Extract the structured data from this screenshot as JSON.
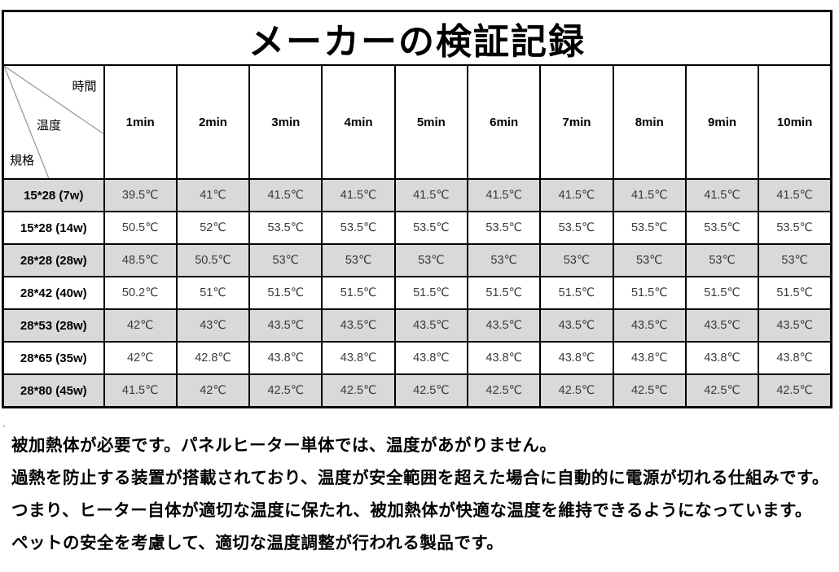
{
  "title": "メーカーの検証記録",
  "table": {
    "corner": {
      "time": "時間",
      "temperature": "温度",
      "spec": "規格"
    },
    "time_headers": [
      "1min",
      "2min",
      "3min",
      "4min",
      "5min",
      "6min",
      "7min",
      "8min",
      "9min",
      "10min"
    ],
    "rows": [
      {
        "label": "15*28（7w）",
        "label_display": "15*28 (7w)",
        "values": [
          "39.5℃",
          "41℃",
          "41.5℃",
          "41.5℃",
          "41.5℃",
          "41.5℃",
          "41.5℃",
          "41.5℃",
          "41.5℃",
          "41.5℃"
        ]
      },
      {
        "label": "15*28（14w）",
        "label_display": "15*28 (14w)",
        "values": [
          "50.5℃",
          "52℃",
          "53.5℃",
          "53.5℃",
          "53.5℃",
          "53.5℃",
          "53.5℃",
          "53.5℃",
          "53.5℃",
          "53.5℃"
        ]
      },
      {
        "label": "28*28（28w）",
        "label_display": "28*28 (28w)",
        "values": [
          "48.5℃",
          "50.5℃",
          "53℃",
          "53℃",
          "53℃",
          "53℃",
          "53℃",
          "53℃",
          "53℃",
          "53℃"
        ]
      },
      {
        "label": "28*42（40w）",
        "label_display": "28*42 (40w)",
        "values": [
          "50.2℃",
          "51℃",
          "51.5℃",
          "51.5℃",
          "51.5℃",
          "51.5℃",
          "51.5℃",
          "51.5℃",
          "51.5℃",
          "51.5℃"
        ]
      },
      {
        "label": "28*53（28w）",
        "label_display": "28*53 (28w)",
        "values": [
          "42℃",
          "43℃",
          "43.5℃",
          "43.5℃",
          "43.5℃",
          "43.5℃",
          "43.5℃",
          "43.5℃",
          "43.5℃",
          "43.5℃"
        ]
      },
      {
        "label": "28*65（35w）",
        "label_display": "28*65 (35w)",
        "values": [
          "42℃",
          "42.8℃",
          "43.8℃",
          "43.8℃",
          "43.8℃",
          "43.8℃",
          "43.8℃",
          "43.8℃",
          "43.8℃",
          "43.8℃"
        ]
      },
      {
        "label": "28*80（45w）",
        "label_display": "28*80 (45w)",
        "values": [
          "41.5℃",
          "42℃",
          "42.5℃",
          "42.5℃",
          "42.5℃",
          "42.5℃",
          "42.5℃",
          "42.5℃",
          "42.5℃",
          "42.5℃"
        ]
      }
    ]
  },
  "notes": [
    "被加熱体が必要です。パネルヒーター単体では、温度があがりません。",
    "過熱を防止する装置が搭載されており、温度が安全範囲を超えた場合に自動的に電源が切れる仕組みです。",
    "つまり、ヒーター自体が適切な温度に保たれ、被加熱体が快適な温度を維持できるようになっています。",
    "ペットの安全を考慮して、適切な温度調整が行われる製品です。"
  ],
  "stray_mark": "`",
  "colors": {
    "row_shade": "#d9d9d9",
    "border": "#000000",
    "value_text": "#3a3a3a",
    "diagonal_line": "#999999"
  }
}
